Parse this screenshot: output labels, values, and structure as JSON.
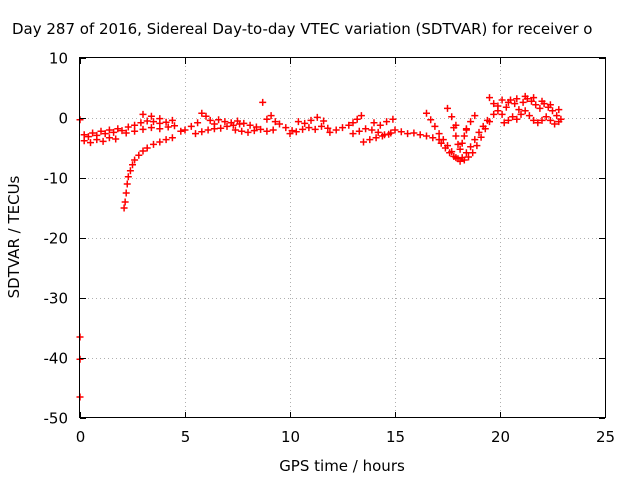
{
  "chart_data": {
    "type": "scatter",
    "title": "Day 287 of 2016, Sidereal Day-to-day VTEC variation (SDTVAR) for receiver o",
    "xlabel": "GPS time / hours",
    "ylabel": "SDTVAR / TECUs",
    "xlim": [
      0,
      25
    ],
    "ylim": [
      -50,
      10
    ],
    "xticks": [
      0,
      5,
      10,
      15,
      20,
      25
    ],
    "yticks": [
      10,
      0,
      -10,
      -20,
      -30,
      -40,
      -50
    ],
    "grid": true,
    "marker": "+",
    "colors": {
      "series": "#ff0000",
      "axis": "#000000",
      "grid": "#b0b0b0"
    },
    "series": [
      {
        "name": "SDTVAR",
        "points": [
          [
            0.0,
            -36.5
          ],
          [
            0.0,
            -40.2
          ],
          [
            0.0,
            -46.5
          ],
          [
            0.0,
            -0.3
          ],
          [
            0.2,
            -2.8
          ],
          [
            0.4,
            -3.1
          ],
          [
            0.6,
            -2.5
          ],
          [
            0.8,
            -2.9
          ],
          [
            1.0,
            -2.2
          ],
          [
            1.2,
            -2.6
          ],
          [
            1.4,
            -2.0
          ],
          [
            1.6,
            -2.4
          ],
          [
            1.8,
            -1.8
          ],
          [
            2.0,
            -2.1
          ],
          [
            0.2,
            -3.8
          ],
          [
            0.5,
            -4.1
          ],
          [
            0.8,
            -3.6
          ],
          [
            1.1,
            -3.9
          ],
          [
            1.4,
            -3.3
          ],
          [
            1.7,
            -3.5
          ],
          [
            2.1,
            -15.0
          ],
          [
            2.15,
            -14.0
          ],
          [
            2.2,
            -12.5
          ],
          [
            2.25,
            -11.0
          ],
          [
            2.3,
            -9.8
          ],
          [
            2.4,
            -8.8
          ],
          [
            2.5,
            -7.8
          ],
          [
            2.6,
            -7.0
          ],
          [
            2.8,
            -6.2
          ],
          [
            3.0,
            -5.5
          ],
          [
            3.2,
            -5.0
          ],
          [
            3.5,
            -4.4
          ],
          [
            3.8,
            -4.0
          ],
          [
            4.1,
            -3.6
          ],
          [
            4.4,
            -3.3
          ],
          [
            2.3,
            -1.5
          ],
          [
            2.6,
            -1.2
          ],
          [
            2.9,
            -0.8
          ],
          [
            3.2,
            -0.5
          ],
          [
            3.5,
            -0.6
          ],
          [
            3.8,
            -0.9
          ],
          [
            4.1,
            -0.7
          ],
          [
            4.4,
            -0.4
          ],
          [
            2.2,
            -2.5
          ],
          [
            2.6,
            -2.2
          ],
          [
            3.0,
            -1.9
          ],
          [
            3.4,
            -1.6
          ],
          [
            3.8,
            -1.8
          ],
          [
            4.2,
            -1.5
          ],
          [
            4.5,
            -1.3
          ],
          [
            3.0,
            0.6
          ],
          [
            3.4,
            0.3
          ],
          [
            3.8,
            -0.1
          ],
          [
            4.8,
            -2.2
          ],
          [
            5.0,
            -2.0
          ],
          [
            5.3,
            -1.4
          ],
          [
            5.6,
            -0.8
          ],
          [
            5.8,
            0.8
          ],
          [
            6.0,
            0.3
          ],
          [
            6.2,
            -0.4
          ],
          [
            6.4,
            -1.0
          ],
          [
            5.5,
            -2.6
          ],
          [
            5.8,
            -2.3
          ],
          [
            6.1,
            -2.0
          ],
          [
            6.4,
            -1.8
          ],
          [
            6.7,
            -1.7
          ],
          [
            7.0,
            -1.4
          ],
          [
            7.3,
            -1.2
          ],
          [
            7.6,
            -1.0
          ],
          [
            6.6,
            -0.3
          ],
          [
            6.9,
            -0.6
          ],
          [
            7.2,
            -0.8
          ],
          [
            7.5,
            -0.5
          ],
          [
            7.8,
            -0.9
          ],
          [
            8.1,
            -1.2
          ],
          [
            8.4,
            -1.5
          ],
          [
            7.4,
            -2.0
          ],
          [
            7.7,
            -2.2
          ],
          [
            8.0,
            -2.4
          ],
          [
            8.3,
            -2.1
          ],
          [
            8.6,
            -1.9
          ],
          [
            8.9,
            -2.2
          ],
          [
            9.2,
            -2.0
          ],
          [
            8.7,
            2.6
          ],
          [
            8.9,
            -0.2
          ],
          [
            9.1,
            0.4
          ],
          [
            9.3,
            -0.6
          ],
          [
            9.5,
            -1.0
          ],
          [
            9.8,
            -1.6
          ],
          [
            10.1,
            -2.1
          ],
          [
            10.0,
            -2.6
          ],
          [
            10.3,
            -2.3
          ],
          [
            10.6,
            -1.9
          ],
          [
            10.9,
            -1.6
          ],
          [
            11.2,
            -1.9
          ],
          [
            11.5,
            -1.4
          ],
          [
            11.8,
            -1.7
          ],
          [
            10.4,
            -0.6
          ],
          [
            10.7,
            -0.9
          ],
          [
            11.0,
            -0.4
          ],
          [
            11.3,
            0.1
          ],
          [
            11.6,
            -0.5
          ],
          [
            11.9,
            -2.4
          ],
          [
            12.2,
            -2.0
          ],
          [
            12.5,
            -1.6
          ],
          [
            12.8,
            -1.2
          ],
          [
            13.0,
            -0.8
          ],
          [
            13.2,
            -0.2
          ],
          [
            13.4,
            0.4
          ],
          [
            13.0,
            -2.6
          ],
          [
            13.3,
            -2.2
          ],
          [
            13.6,
            -1.8
          ],
          [
            13.9,
            -2.0
          ],
          [
            14.2,
            -2.4
          ],
          [
            14.5,
            -2.8
          ],
          [
            14.8,
            -2.5
          ],
          [
            13.5,
            -4.0
          ],
          [
            13.8,
            -3.6
          ],
          [
            14.1,
            -3.3
          ],
          [
            14.4,
            -3.0
          ],
          [
            14.7,
            -2.7
          ],
          [
            14.0,
            -0.8
          ],
          [
            14.3,
            -1.2
          ],
          [
            14.6,
            -0.6
          ],
          [
            14.9,
            -0.2
          ],
          [
            15.0,
            -2.0
          ],
          [
            15.3,
            -2.3
          ],
          [
            15.6,
            -2.6
          ],
          [
            15.9,
            -2.5
          ],
          [
            16.2,
            -2.8
          ],
          [
            16.5,
            -3.0
          ],
          [
            16.8,
            -3.3
          ],
          [
            17.1,
            -3.6
          ],
          [
            16.5,
            0.8
          ],
          [
            16.7,
            -0.3
          ],
          [
            16.9,
            -1.4
          ],
          [
            17.1,
            -2.6
          ],
          [
            17.3,
            -3.6
          ],
          [
            17.5,
            -4.6
          ],
          [
            17.7,
            -5.6
          ],
          [
            17.9,
            -6.6
          ],
          [
            18.1,
            -7.2
          ],
          [
            18.3,
            -7.0
          ],
          [
            18.5,
            -6.5
          ],
          [
            18.7,
            -5.8
          ],
          [
            18.9,
            -4.6
          ],
          [
            19.1,
            -3.2
          ],
          [
            19.3,
            -1.8
          ],
          [
            19.5,
            -0.6
          ],
          [
            19.7,
            0.6
          ],
          [
            19.9,
            2.0
          ],
          [
            17.2,
            -4.2
          ],
          [
            17.4,
            -5.0
          ],
          [
            17.6,
            -5.8
          ],
          [
            17.8,
            -6.4
          ],
          [
            18.0,
            -6.8
          ],
          [
            18.2,
            -6.6
          ],
          [
            18.4,
            -5.8
          ],
          [
            18.6,
            -4.8
          ],
          [
            18.8,
            -3.6
          ],
          [
            19.0,
            -2.4
          ],
          [
            19.2,
            -1.4
          ],
          [
            19.4,
            -0.4
          ],
          [
            17.8,
            -1.6
          ],
          [
            17.9,
            -3.0
          ],
          [
            18.0,
            -4.4
          ],
          [
            18.1,
            -5.2
          ],
          [
            18.2,
            -4.2
          ],
          [
            18.3,
            -3.0
          ],
          [
            18.4,
            -1.8
          ],
          [
            17.5,
            1.6
          ],
          [
            17.7,
            0.2
          ],
          [
            17.9,
            -1.2
          ],
          [
            18.4,
            -2.0
          ],
          [
            18.6,
            -0.6
          ],
          [
            18.8,
            0.4
          ],
          [
            19.5,
            3.4
          ],
          [
            19.7,
            2.4
          ],
          [
            19.9,
            1.2
          ],
          [
            20.1,
            0.6
          ],
          [
            20.3,
            1.8
          ],
          [
            20.5,
            3.0
          ],
          [
            20.7,
            2.4
          ],
          [
            20.9,
            1.4
          ],
          [
            21.1,
            2.6
          ],
          [
            21.3,
            3.2
          ],
          [
            21.5,
            2.8
          ],
          [
            21.7,
            2.2
          ],
          [
            21.9,
            1.6
          ],
          [
            22.1,
            2.4
          ],
          [
            22.3,
            1.8
          ],
          [
            22.5,
            1.2
          ],
          [
            22.7,
            0.4
          ],
          [
            22.9,
            -0.2
          ],
          [
            20.2,
            -0.8
          ],
          [
            20.4,
            -0.4
          ],
          [
            20.6,
            0.2
          ],
          [
            20.8,
            -0.2
          ],
          [
            21.0,
            0.6
          ],
          [
            21.2,
            1.2
          ],
          [
            21.4,
            0.4
          ],
          [
            21.6,
            -0.4
          ],
          [
            21.8,
            -0.8
          ],
          [
            22.0,
            -0.4
          ],
          [
            22.2,
            0.2
          ],
          [
            22.4,
            -0.4
          ],
          [
            22.6,
            -1.0
          ],
          [
            22.8,
            -0.6
          ],
          [
            20.1,
            3.0
          ],
          [
            20.4,
            2.6
          ],
          [
            20.8,
            3.2
          ],
          [
            21.2,
            3.6
          ],
          [
            21.6,
            3.4
          ],
          [
            22.0,
            2.8
          ],
          [
            22.4,
            2.2
          ],
          [
            22.8,
            1.4
          ]
        ]
      }
    ]
  }
}
